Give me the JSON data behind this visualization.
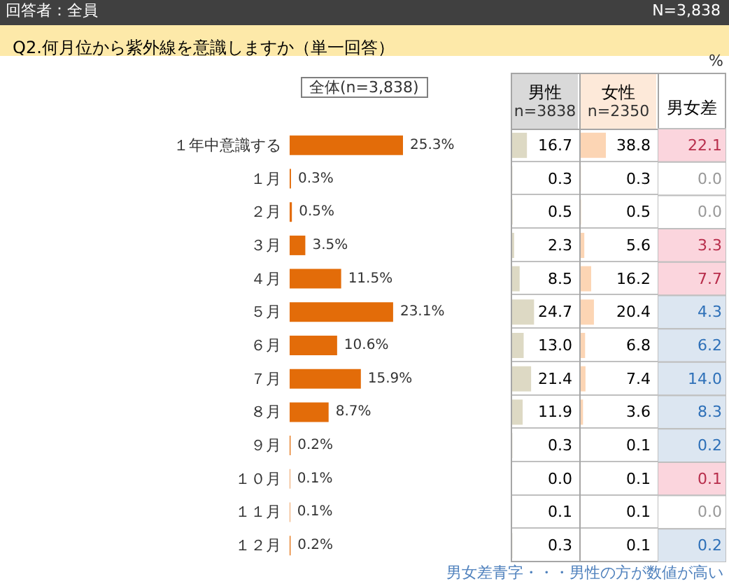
{
  "chart_data": [
    {
      "type": "bar",
      "orientation": "horizontal",
      "title": "Q2.何月位から紫外線を意識しますか（単一回答）",
      "subtitle": "全体(n=3,838)",
      "annotations": [
        "回答者：全員",
        "N=3,838",
        "%",
        "男女差青字・・・男性の方が数値が高い"
      ],
      "categories": [
        "１年中意識する",
        "１月",
        "２月",
        "３月",
        "４月",
        "５月",
        "６月",
        "７月",
        "８月",
        "９月",
        "１０月",
        "１１月",
        "１２月"
      ],
      "values": [
        25.3,
        0.3,
        0.5,
        3.5,
        11.5,
        23.1,
        10.6,
        15.9,
        8.7,
        0.2,
        0.1,
        0.1,
        0.2
      ],
      "value_labels": [
        "25.3%",
        "0.3%",
        "0.5%",
        "3.5%",
        "11.5%",
        "23.1%",
        "10.6%",
        "15.9%",
        "8.7%",
        "0.2%",
        "0.1%",
        "0.1%",
        "0.2%"
      ],
      "color": "#e36c09"
    },
    {
      "type": "bar",
      "orientation": "horizontal",
      "title": "男性",
      "subtitle": "n=3838",
      "tick_labels": false,
      "values": [
        16.7,
        0.3,
        0.5,
        2.3,
        8.5,
        24.7,
        13.0,
        21.4,
        11.9,
        0.3,
        0.0,
        0.1,
        0.3
      ],
      "value_labels": [
        "16.7",
        "0.3",
        "0.5",
        "2.3",
        "8.5",
        "24.7",
        "13.0",
        "21.4",
        "11.9",
        "0.3",
        "0.0",
        "0.1",
        "0.3"
      ],
      "color": "#ddd9c4"
    },
    {
      "type": "bar",
      "orientation": "horizontal",
      "title": "女性",
      "subtitle": "n=2350",
      "tick_labels": false,
      "values": [
        38.8,
        0.3,
        0.5,
        5.6,
        16.2,
        20.4,
        6.8,
        7.4,
        3.6,
        0.1,
        0.1,
        0.1,
        0.1
      ],
      "value_labels": [
        "38.8",
        "0.3",
        "0.5",
        "5.6",
        "16.2",
        "20.4",
        "6.8",
        "7.4",
        "3.6",
        "0.1",
        "0.1",
        "0.1",
        "0.1"
      ],
      "color": "#fcd5b4"
    },
    {
      "type": "other",
      "title": "男女差",
      "values": [
        22.1,
        0.0,
        0.0,
        3.3,
        7.7,
        4.3,
        6.2,
        14.0,
        8.3,
        0.2,
        0.1,
        0.0,
        0.2
      ],
      "value_labels": [
        "22.1",
        "0.0",
        "0.0",
        "3.3",
        "7.7",
        "4.3",
        "6.2",
        "14.0",
        "8.3",
        "0.2",
        "0.1",
        "0.0",
        "0.2"
      ],
      "colors": [
        "#fbd5dd",
        "#ffffff",
        "#ffffff",
        "#fbd5dd",
        "#fbd5dd",
        "#dce6f1",
        "#dce6f1",
        "#dce6f1",
        "#dce6f1",
        "#dce6f1",
        "#fbd5dd",
        "#ffffff",
        "#dce6f1"
      ]
    }
  ]
}
